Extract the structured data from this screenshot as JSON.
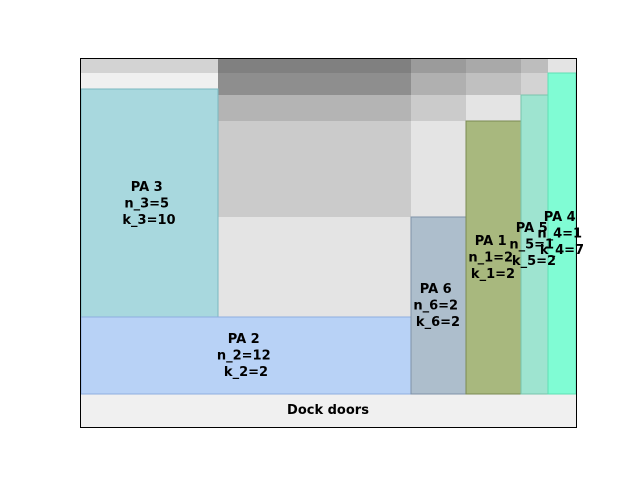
{
  "footer": {
    "label": "Dock doors"
  },
  "areas": [
    {
      "id": "pa3",
      "lines": [
        "PA 3",
        "n_3=5",
        "k_3=10"
      ],
      "color": "#a8d8de"
    },
    {
      "id": "pa2",
      "lines": [
        "PA 2",
        "n_2=12",
        "k_2=2"
      ],
      "color": "#b8d2f6"
    },
    {
      "id": "pa6",
      "lines": [
        "PA 6",
        "n_6=2",
        "k_6=2"
      ],
      "color": "#adbecc"
    },
    {
      "id": "pa1",
      "lines": [
        "PA 1",
        "n_1=2",
        "k_1=2"
      ],
      "color": "#a8b87e"
    },
    {
      "id": "pa5",
      "lines": [
        "PA 5",
        "n_5=1",
        "k_5=2"
      ],
      "color": "#9ee4d0"
    },
    {
      "id": "pa4",
      "lines": [
        "PA 4",
        "n_4=1",
        "k_4=7"
      ],
      "color": "#80fcd4"
    }
  ],
  "colors": {
    "frame": "#000000",
    "background": "#f0f0f0",
    "shade_dark": "#808080",
    "shade_mid": "#b8b8b8",
    "shade_light": "#cccccc",
    "shade_pale": "#e4e4e4"
  }
}
